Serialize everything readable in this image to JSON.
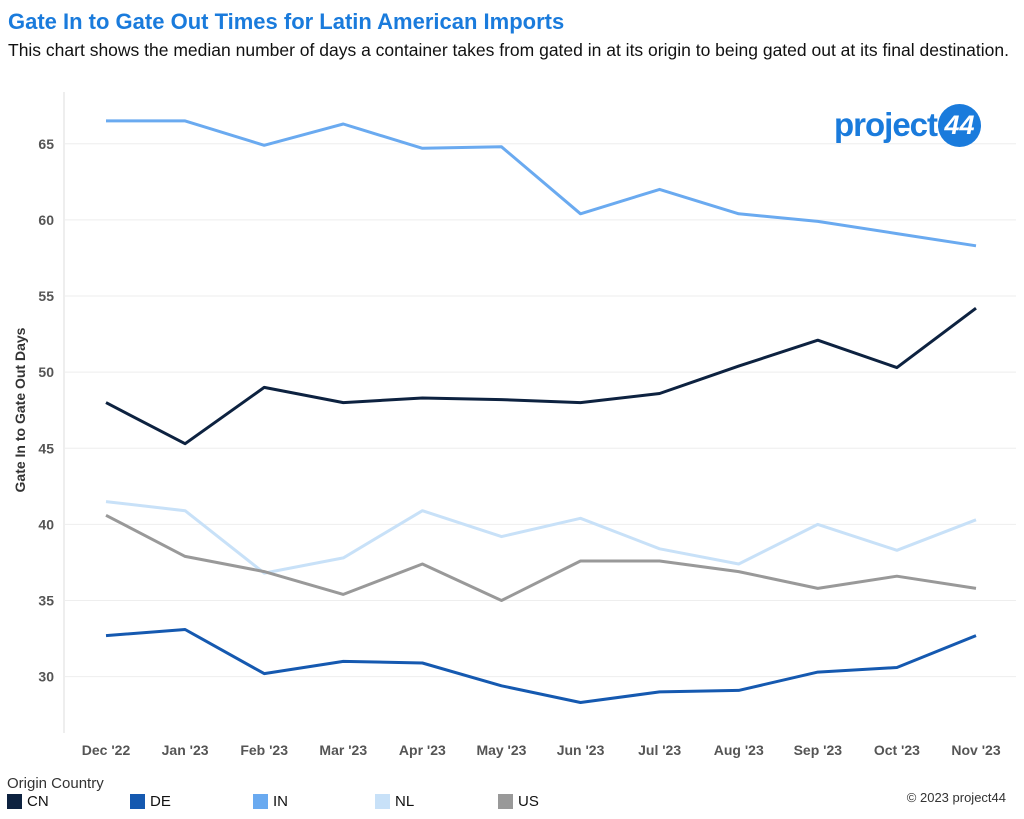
{
  "header": {
    "title": "Gate In to Gate Out Times for Latin American Imports",
    "subtitle": "This chart shows the median number of days a container takes from gated in at its origin to being gated out at its final destination."
  },
  "logo": {
    "text": "project",
    "badge": "44"
  },
  "legend": {
    "title": "Origin Country",
    "items": [
      {
        "label": "CN",
        "color": "#0d2240"
      },
      {
        "label": "DE",
        "color": "#1559b0"
      },
      {
        "label": "IN",
        "color": "#6aaaf0"
      },
      {
        "label": "NL",
        "color": "#c8e1f8"
      },
      {
        "label": "US",
        "color": "#999999"
      }
    ]
  },
  "footer": {
    "copyright": "© 2023 project44"
  },
  "chart_data": {
    "type": "line",
    "title": "Gate In to Gate Out Times for Latin American Imports",
    "xlabel": "",
    "ylabel": "Gate In to Gate Out Days",
    "ylim": [
      26.3,
      68.4
    ],
    "yticks": [
      30,
      35,
      40,
      45,
      50,
      55,
      60,
      65
    ],
    "grid": true,
    "legend_position": "bottom-left",
    "categories": [
      "Dec '22",
      "Jan '23",
      "Feb '23",
      "Mar '23",
      "Apr '23",
      "May '23",
      "Jun '23",
      "Jul '23",
      "Aug '23",
      "Sep '23",
      "Oct '23",
      "Nov '23"
    ],
    "series": [
      {
        "name": "IN",
        "color": "#6aaaf0",
        "values": [
          66.5,
          66.5,
          64.9,
          66.3,
          64.7,
          64.8,
          60.4,
          62.0,
          60.4,
          59.9,
          59.1,
          58.3
        ]
      },
      {
        "name": "CN",
        "color": "#0d2240",
        "values": [
          48.0,
          45.3,
          49.0,
          48.0,
          48.3,
          48.2,
          48.0,
          48.6,
          50.4,
          52.1,
          50.3,
          54.2
        ]
      },
      {
        "name": "NL",
        "color": "#c8e1f8",
        "values": [
          41.5,
          40.9,
          36.8,
          37.8,
          40.9,
          39.2,
          40.4,
          38.4,
          37.4,
          40.0,
          38.3,
          40.3
        ]
      },
      {
        "name": "US",
        "color": "#999999",
        "values": [
          40.6,
          37.9,
          36.9,
          35.4,
          37.4,
          35.0,
          37.6,
          37.6,
          36.9,
          35.8,
          36.6,
          35.8
        ]
      },
      {
        "name": "DE",
        "color": "#1559b0",
        "values": [
          32.7,
          33.1,
          30.2,
          31.0,
          30.9,
          29.4,
          28.3,
          29.0,
          29.1,
          30.3,
          30.6,
          32.7
        ]
      }
    ]
  }
}
